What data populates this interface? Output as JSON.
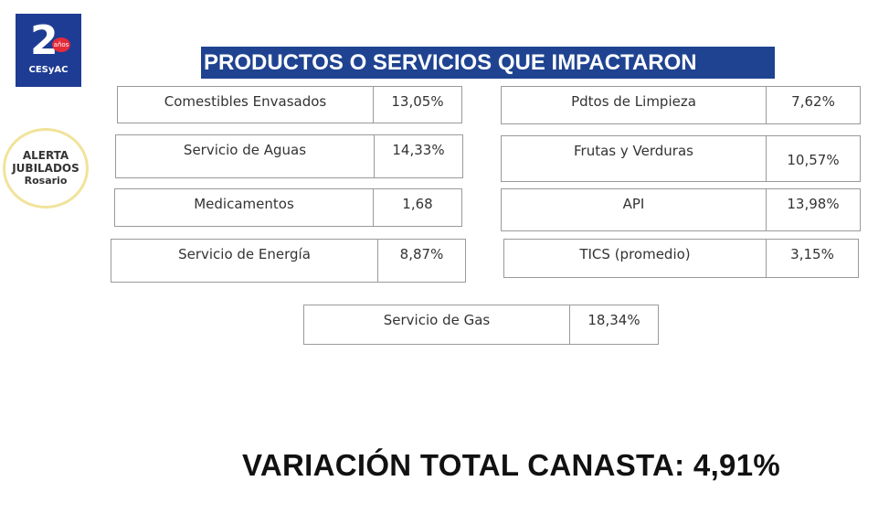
{
  "logos": {
    "cesyac": {
      "number": "2",
      "badge": "años",
      "name": "CESyAC"
    },
    "alerta": {
      "line1": "ALERTA",
      "line2": "JUBILADOS",
      "line3": "Rosario"
    }
  },
  "title": "PRODUCTOS O SERVICIOS QUE IMPACTARON",
  "items": [
    {
      "label": "Comestibles Envasados",
      "value": "13,05%"
    },
    {
      "label": "Pdtos de Limpieza",
      "value": "7,62%"
    },
    {
      "label": "Servicio de Aguas",
      "value": "14,33%"
    },
    {
      "label": "Frutas y Verduras",
      "value": "10,57%"
    },
    {
      "label": "Medicamentos",
      "value": "1,68"
    },
    {
      "label": "API",
      "value": "13,98%"
    },
    {
      "label": "Servicio de Energía",
      "value": "8,87%"
    },
    {
      "label": "TICS (promedio)",
      "value": "3,15%"
    },
    {
      "label": "Servicio de Gas",
      "value": "18,34%"
    }
  ],
  "total": "VARIACIÓN TOTAL CANASTA: 4,91%",
  "colors": {
    "title_bg": "#1f4391",
    "logo_bg": "#1e3c93",
    "badge": "#e32b3a",
    "ring": "#f1e39a"
  }
}
